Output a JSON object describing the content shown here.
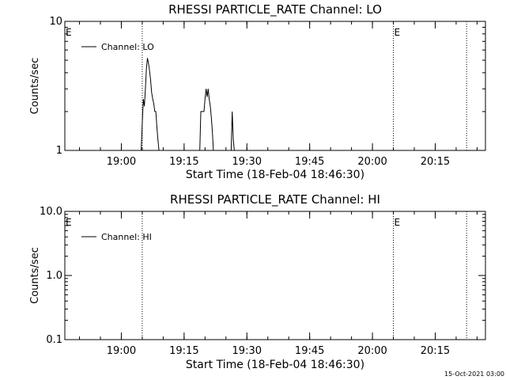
{
  "chart_data": [
    {
      "type": "line",
      "title": "RHESSI PARTICLE_RATE Channel: LO",
      "xlabel": "Start Time (18-Feb-04 18:46:30)",
      "ylabel": "Counts/sec",
      "y_scale": "log",
      "ylim": [
        1,
        10
      ],
      "y_ticks": [
        {
          "value": 1,
          "label": "1"
        },
        {
          "value": 10,
          "label": "10"
        }
      ],
      "xlim": [
        "18:46:30",
        "20:27:00"
      ],
      "x_ticks": [
        "19:00",
        "19:15",
        "19:30",
        "19:45",
        "20:00",
        "20:15"
      ],
      "legend": {
        "position": "top-left",
        "label": "Channel: LO"
      },
      "markers": [
        {
          "time": "18:46:30",
          "label": "E"
        },
        {
          "time": "20:05:00",
          "label": "E"
        }
      ],
      "vlines": [
        "19:05:00",
        "20:05:00",
        "20:22:30"
      ],
      "series": [
        {
          "name": "Channel: LO",
          "x": [
            "19:04:45",
            "19:05:00",
            "19:05:15",
            "19:05:30",
            "19:05:45",
            "19:06:00",
            "19:06:15",
            "19:06:30",
            "19:06:45",
            "19:07:00",
            "19:07:15",
            "19:07:30",
            "19:07:45",
            "19:08:00",
            "19:08:15",
            "19:08:30",
            "19:08:45",
            "19:09:00",
            "19:18:45",
            "19:19:00",
            "19:19:15",
            "19:19:30",
            "19:19:45",
            "19:20:00",
            "19:20:15",
            "19:20:30",
            "19:20:45",
            "19:21:00",
            "19:21:15",
            "19:21:30",
            "19:21:45",
            "19:22:00",
            "19:26:15",
            "19:26:30",
            "19:26:45",
            "19:27:00"
          ],
          "values": [
            1,
            1.6,
            2.5,
            2.2,
            3,
            4.3,
            5.2,
            4.7,
            4.1,
            3.5,
            2.8,
            2.5,
            2.3,
            2,
            2,
            1.5,
            1.2,
            1,
            1,
            2,
            2,
            2,
            2,
            2.5,
            3,
            2.6,
            3,
            2.5,
            2.2,
            1.8,
            1.4,
            1,
            1,
            2,
            1.2,
            1
          ]
        }
      ]
    },
    {
      "type": "line",
      "title": "RHESSI PARTICLE_RATE Channel: HI",
      "xlabel": "Start Time (18-Feb-04 18:46:30)",
      "ylabel": "Counts/sec",
      "y_scale": "log",
      "ylim": [
        0.1,
        10
      ],
      "y_ticks": [
        {
          "value": 0.1,
          "label": "0.1"
        },
        {
          "value": 1,
          "label": "1.0"
        },
        {
          "value": 10,
          "label": "10.0"
        }
      ],
      "xlim": [
        "18:46:30",
        "20:27:00"
      ],
      "x_ticks": [
        "19:00",
        "19:15",
        "19:30",
        "19:45",
        "20:00",
        "20:15"
      ],
      "legend": {
        "position": "top-left",
        "label": "Channel: HI"
      },
      "markers": [
        {
          "time": "18:46:30",
          "label": "E"
        },
        {
          "time": "20:05:00",
          "label": "E"
        }
      ],
      "vlines": [
        "19:05:00",
        "20:05:00",
        "20:22:30"
      ],
      "series": [
        {
          "name": "Channel: HI",
          "x": [],
          "values": []
        }
      ]
    }
  ],
  "footer": {
    "timestamp": "15-Oct-2021 03:00"
  }
}
